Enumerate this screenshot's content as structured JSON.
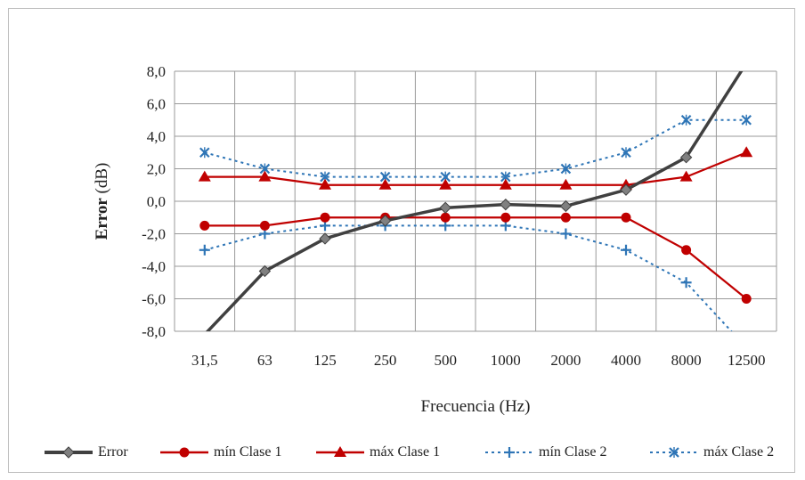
{
  "chart_data": {
    "type": "line",
    "xlabel": "Frecuencia (Hz)",
    "ylabel_bold": "Error",
    "ylabel_rest": " (dB)",
    "categories": [
      "31,5",
      "63",
      "125",
      "250",
      "500",
      "1000",
      "2000",
      "4000",
      "8000",
      "12500"
    ],
    "ylim": [
      -8,
      8
    ],
    "yticks": [
      {
        "value": 8,
        "label": "8,0"
      },
      {
        "value": 6,
        "label": "6,0"
      },
      {
        "value": 4,
        "label": "4,0"
      },
      {
        "value": 2,
        "label": "2,0"
      },
      {
        "value": 0,
        "label": "0,0"
      },
      {
        "value": -2,
        "label": "-2,0"
      },
      {
        "value": -4,
        "label": "-4,0"
      },
      {
        "value": -6,
        "label": "-6,0"
      },
      {
        "value": -8,
        "label": "-8,0"
      }
    ],
    "grid": true,
    "legend_position": "bottom",
    "series": [
      {
        "name": "Error",
        "color": "#404040",
        "dash": "solid",
        "marker": "diamond",
        "values": [
          -8.2,
          -4.3,
          -2.3,
          -1.2,
          -0.4,
          -0.2,
          -0.3,
          0.7,
          2.7,
          8.5
        ]
      },
      {
        "name": "mín Clase 1",
        "color": "#c00000",
        "dash": "solid",
        "marker": "circle",
        "values": [
          -1.5,
          -1.5,
          -1.0,
          -1.0,
          -1.0,
          -1.0,
          -1.0,
          -1.0,
          -3.0,
          -6.0
        ]
      },
      {
        "name": "máx Clase 1",
        "color": "#c00000",
        "dash": "solid",
        "marker": "triangle",
        "values": [
          1.5,
          1.5,
          1.0,
          1.0,
          1.0,
          1.0,
          1.0,
          1.0,
          1.5,
          3.0
        ]
      },
      {
        "name": "mín Clase 2",
        "color": "#2e75b6",
        "dash": "dotted",
        "marker": "plus",
        "values": [
          -3.0,
          -2.0,
          -1.5,
          -1.5,
          -1.5,
          -1.5,
          -2.0,
          -3.0,
          -5.0,
          -9.0
        ]
      },
      {
        "name": "máx Clase 2",
        "color": "#2e75b6",
        "dash": "dotted",
        "marker": "x",
        "values": [
          3.0,
          2.0,
          1.5,
          1.5,
          1.5,
          1.5,
          2.0,
          3.0,
          5.0,
          5.0
        ]
      }
    ]
  }
}
